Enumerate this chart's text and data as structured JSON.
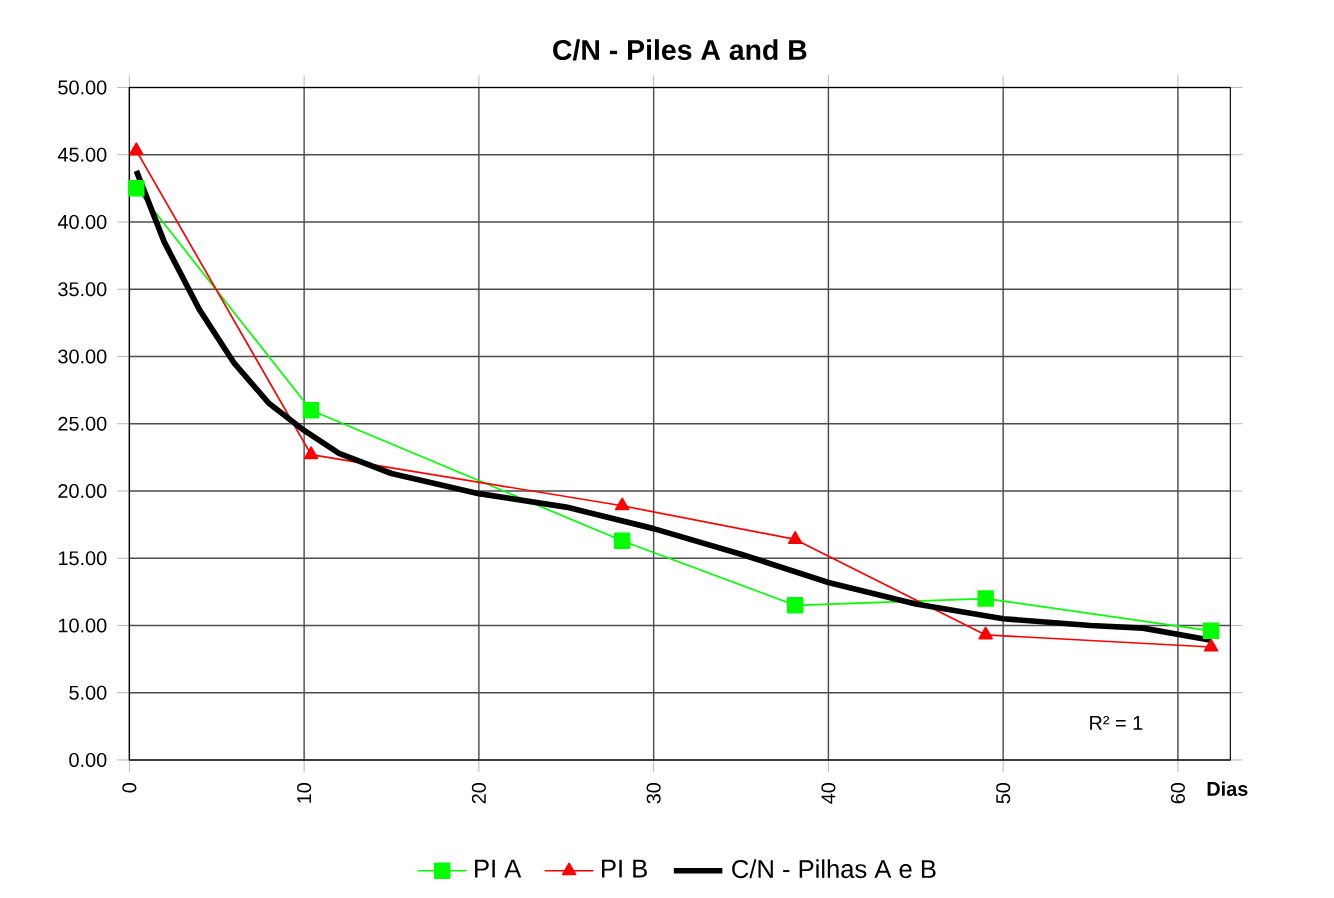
{
  "chart_data": {
    "type": "line",
    "title": "C/N - Piles A and B",
    "xlabel": "Dias",
    "xlim": [
      0,
      63
    ],
    "xticks": [
      0,
      10,
      20,
      30,
      40,
      50,
      60
    ],
    "ylim": [
      0,
      50
    ],
    "yticks": [
      {
        "value": 0,
        "label": "0.00"
      },
      {
        "value": 5,
        "label": "5.00"
      },
      {
        "value": 10,
        "label": "10.00"
      },
      {
        "value": 15,
        "label": "15.00"
      },
      {
        "value": 20,
        "label": "20.00"
      },
      {
        "value": 25,
        "label": "25.00"
      },
      {
        "value": 30,
        "label": "30.00"
      },
      {
        "value": 35,
        "label": "35.00"
      },
      {
        "value": 40,
        "label": "40.00"
      },
      {
        "value": 45,
        "label": "45.00"
      },
      {
        "value": 50,
        "label": "50.00"
      }
    ],
    "grid": true,
    "legend": "bottom",
    "annotations": [
      "R² = 1"
    ],
    "series": [
      {
        "name": "PI A",
        "color": "#00ff00",
        "marker": "square",
        "x": [
          0.4,
          10.4,
          28.2,
          38.1,
          49,
          61.9
        ],
        "values": [
          42.5,
          26.0,
          16.3,
          11.5,
          12.0,
          9.6
        ]
      },
      {
        "name": "PI B",
        "color": "#ff0000",
        "marker": "triangle",
        "x": [
          0.4,
          10.4,
          28.2,
          38.1,
          49,
          61.9
        ],
        "values": [
          45.3,
          22.7,
          18.9,
          16.4,
          9.3,
          8.4
        ]
      },
      {
        "name": "C/N - Pilhas A e B",
        "color": "#000000",
        "marker": "none",
        "x": [
          0.4,
          2,
          4,
          6,
          8,
          10,
          12,
          15,
          20,
          25,
          30,
          35,
          40,
          45,
          50,
          55,
          58,
          61.9
        ],
        "values": [
          43.8,
          38.5,
          33.5,
          29.5,
          26.5,
          24.5,
          22.8,
          21.3,
          19.8,
          18.8,
          17.2,
          15.3,
          13.2,
          11.6,
          10.5,
          10.0,
          9.8,
          8.9
        ]
      }
    ]
  }
}
